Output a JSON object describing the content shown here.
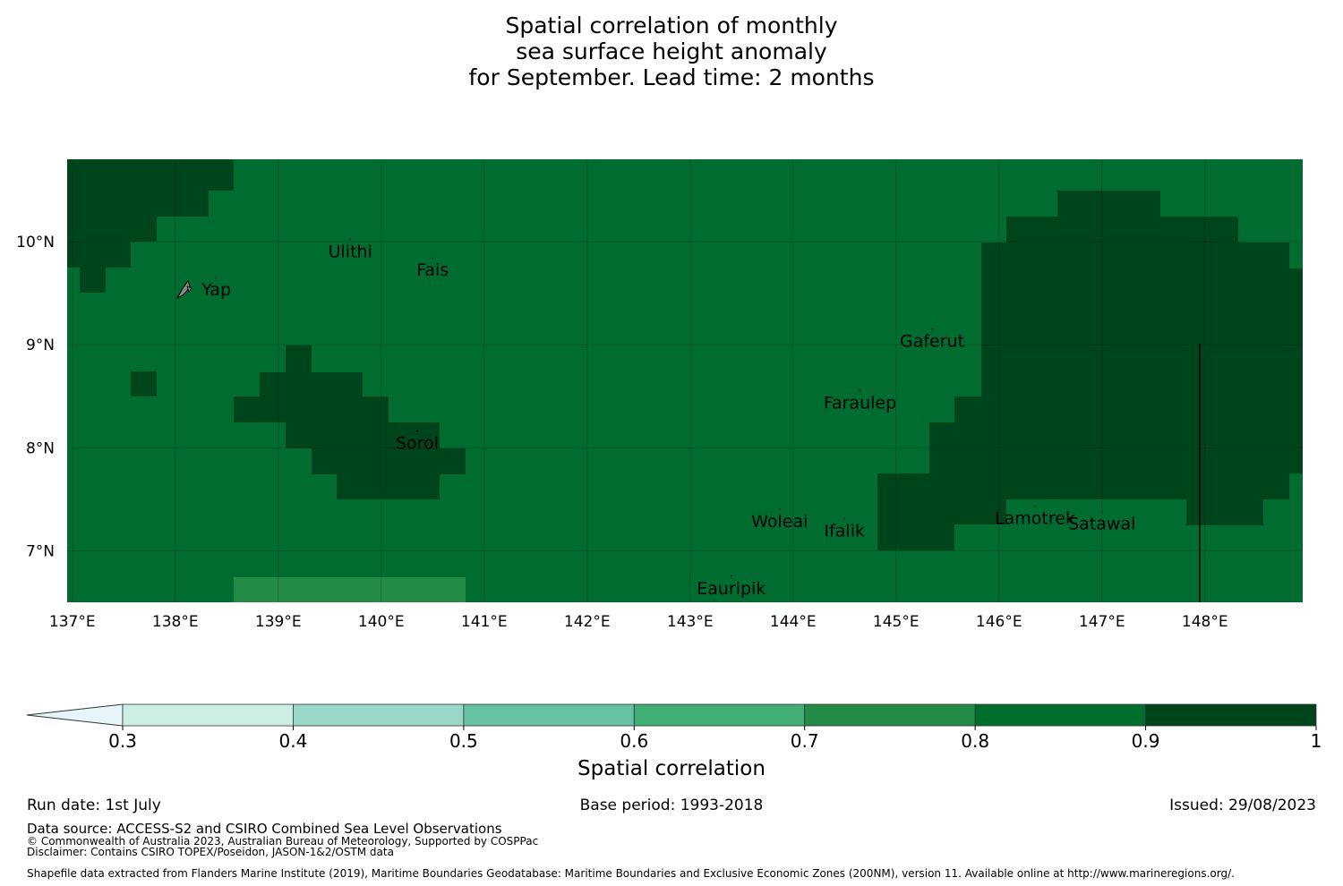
{
  "title": {
    "line1": "Spatial correlation of monthly",
    "line2": "sea surface height anomaly",
    "line3": "for September. Lead time: 2 months"
  },
  "map": {
    "lon_range": [
      136.95,
      148.95
    ],
    "lat_range": [
      6.5,
      10.8
    ],
    "x_ticks": [
      "137°E",
      "138°E",
      "139°E",
      "140°E",
      "141°E",
      "142°E",
      "143°E",
      "144°E",
      "145°E",
      "146°E",
      "147°E",
      "148°E"
    ],
    "y_ticks": [
      "10°N",
      "9°N",
      "8°N",
      "7°N"
    ],
    "base_color": "#016c2f",
    "high_color": "#00441b",
    "low_color": "#238b45",
    "places": [
      {
        "name": "Ulithi",
        "lon": 139.7,
        "lat": 9.85
      },
      {
        "name": "Fais",
        "lon": 140.5,
        "lat": 9.67
      },
      {
        "name": "Yap",
        "lon": 138.4,
        "lat": 9.48
      },
      {
        "name": "Gaferut",
        "lon": 145.35,
        "lat": 8.98
      },
      {
        "name": "Faraulep",
        "lon": 144.65,
        "lat": 8.38
      },
      {
        "name": "Sorol",
        "lon": 140.35,
        "lat": 7.99
      },
      {
        "name": "Woleai",
        "lon": 143.87,
        "lat": 7.23
      },
      {
        "name": "Ifalik",
        "lon": 144.5,
        "lat": 7.14
      },
      {
        "name": "Lamotrek",
        "lon": 146.35,
        "lat": 7.26
      },
      {
        "name": "Satawal",
        "lon": 147.0,
        "lat": 7.21
      },
      {
        "name": "Eauripik",
        "lon": 143.4,
        "lat": 6.58
      }
    ]
  },
  "colorbar": {
    "ticks": [
      "0.3",
      "0.4",
      "0.5",
      "0.6",
      "0.7",
      "0.8",
      "0.9",
      "1"
    ],
    "colors": [
      "#cdeee4",
      "#99d8c9",
      "#66c2a4",
      "#41ae76",
      "#238b45",
      "#006d2c",
      "#00441b"
    ],
    "extend_color": "#e5f5f9",
    "label": "Spatial correlation"
  },
  "footer": {
    "run_date": "Run date: 1st July",
    "base_period": "Base period: 1993-2018",
    "issued": "Issued: 29/08/2023",
    "data_source": "Data source: ACCESS-S2 and CSIRO Combined Sea Level Observations",
    "copyright": "© Commonwealth of Australia 2023, Australian Bureau of Meteorology, Supported by COSPPac",
    "disclaimer": "Disclaimer: Contains CSIRO TOPEX/Poseidon, JASON-1&2/OSTM data",
    "shapefile": "Shapefile data extracted from Flanders Marine Institute (2019), Maritime Boundaries Geodatabase: Maritime Boundaries and Exclusive Economic Zones (200NM), version 11. Available online at http://www.marineregions.org/."
  }
}
